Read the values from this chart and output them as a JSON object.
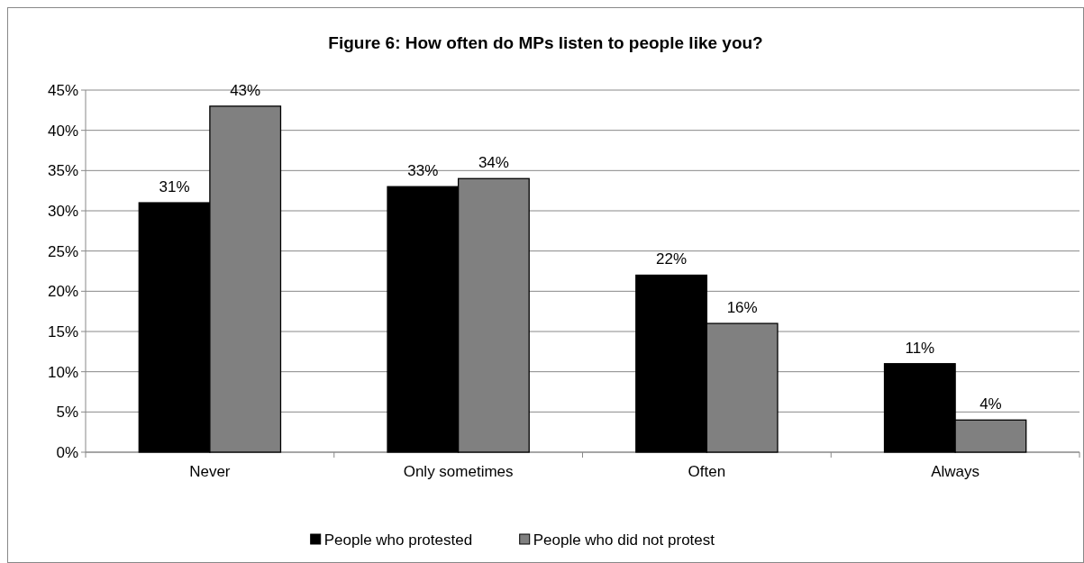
{
  "chart_data": {
    "type": "bar",
    "title": "Figure 6: How often do MPs listen to people like you?",
    "categories": [
      "Never",
      "Only sometimes",
      "Often",
      "Always"
    ],
    "series": [
      {
        "name": "People who protested",
        "color": "#000000",
        "values": [
          31,
          33,
          22,
          11
        ],
        "value_labels": [
          "31%",
          "33%",
          "22%",
          "11%"
        ]
      },
      {
        "name": "People who did not protest",
        "color": "#808080",
        "values": [
          43,
          34,
          16,
          4
        ],
        "value_labels": [
          "43%",
          "34%",
          "16%",
          "4%"
        ]
      }
    ],
    "ylim": [
      0,
      45
    ],
    "yticks": [
      {
        "value": 0,
        "label": "0%"
      },
      {
        "value": 5,
        "label": "5%"
      },
      {
        "value": 10,
        "label": "10%"
      },
      {
        "value": 15,
        "label": "15%"
      },
      {
        "value": 20,
        "label": "20%"
      },
      {
        "value": 25,
        "label": "25%"
      },
      {
        "value": 30,
        "label": "30%"
      },
      {
        "value": 35,
        "label": "35%"
      },
      {
        "value": 40,
        "label": "40%"
      },
      {
        "value": 45,
        "label": "45%"
      }
    ],
    "grid": "y",
    "legend": "bottom"
  }
}
